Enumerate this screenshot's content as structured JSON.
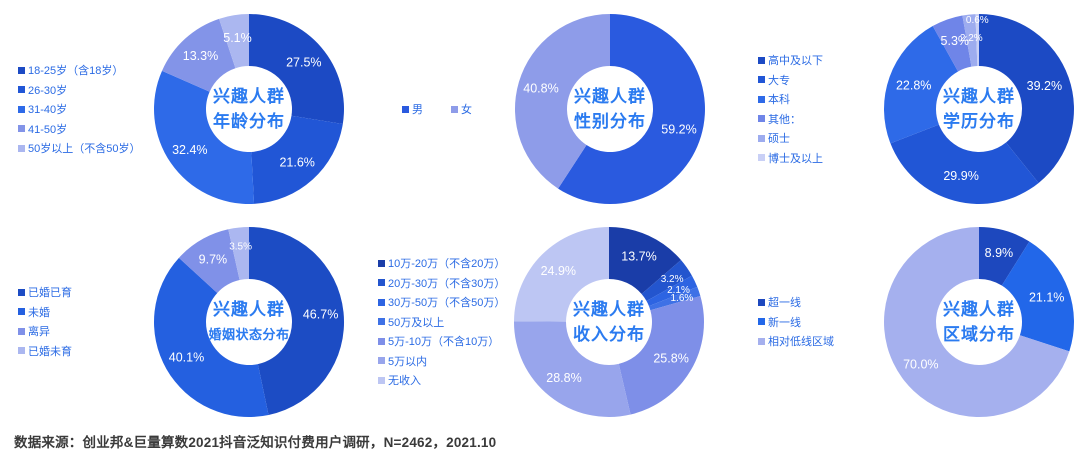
{
  "page": {
    "footer": "数据来源：创业邦&巨量算数2021抖音泛知识付费用户调研，N=2462，2021.10"
  },
  "styles": {
    "legend_text_color": "#2B6BE4",
    "center_title_color": "#2B7BF0",
    "slice_label_color": "#FFFFFF",
    "background": "#FFFFFF"
  },
  "chart_data": [
    {
      "id": "age",
      "type": "pie",
      "donut": true,
      "title": "兴趣人群年龄分布",
      "title_lines": [
        "兴趣人群",
        "年龄分布"
      ],
      "legend_position": "left",
      "legend_layout": "column",
      "start_angle_deg": 0,
      "direction": "clockwise",
      "categories": [
        "18-25岁（含18岁）",
        "26-30岁",
        "31-40岁",
        "41-50岁",
        "50岁以上（不含50岁）"
      ],
      "values": [
        27.5,
        21.6,
        32.4,
        13.3,
        5.1
      ],
      "colors": [
        "#1C4AC4",
        "#2156D6",
        "#2E6AE8",
        "#8394E8",
        "#ABB7F0"
      ]
    },
    {
      "id": "gender",
      "type": "pie",
      "donut": true,
      "title": "兴趣人群性别分布",
      "title_lines": [
        "兴趣人群",
        "性别分布"
      ],
      "legend_position": "left",
      "legend_layout": "row",
      "start_angle_deg": 0,
      "direction": "clockwise",
      "categories": [
        "男",
        "女"
      ],
      "values": [
        59.2,
        40.8
      ],
      "colors": [
        "#2A5ADF",
        "#8E9CE9"
      ]
    },
    {
      "id": "education",
      "type": "pie",
      "donut": true,
      "title": "兴趣人群学历分布",
      "title_lines": [
        "兴趣人群",
        "学历分布"
      ],
      "legend_position": "left",
      "legend_layout": "column",
      "start_angle_deg": 0,
      "direction": "clockwise",
      "categories": [
        "高中及以下",
        "大专",
        "本科",
        "其他：",
        "硕士",
        "博士及以上"
      ],
      "values": [
        39.2,
        29.9,
        22.8,
        5.3,
        2.2,
        0.6
      ],
      "colors": [
        "#1C4AC4",
        "#2156D6",
        "#2E6AE8",
        "#6F85E8",
        "#9DACEF",
        "#C9D0F6"
      ],
      "label_r": [
        0.73,
        0.73,
        0.73,
        0.76,
        0.76,
        0.95
      ]
    },
    {
      "id": "marital",
      "type": "pie",
      "donut": true,
      "title": "兴趣人群婚姻状态分布",
      "title_lines": [
        "兴趣人群",
        "婚姻状态分布"
      ],
      "legend_position": "left",
      "legend_layout": "column",
      "start_angle_deg": 0,
      "direction": "clockwise",
      "categories": [
        "已婚已育",
        "未婚",
        "离异",
        "已婚未育"
      ],
      "values": [
        46.7,
        40.1,
        9.7,
        3.5
      ],
      "colors": [
        "#1C4CC4",
        "#2460E0",
        "#8091E8",
        "#ABB7F0"
      ]
    },
    {
      "id": "income",
      "type": "pie",
      "donut": true,
      "title": "兴趣人群收入分布",
      "title_lines": [
        "兴趣人群",
        "收入分布"
      ],
      "legend_position": "left",
      "legend_layout": "column",
      "start_angle_deg": 0,
      "direction": "clockwise",
      "categories": [
        "10万-20万（不含20万）",
        "20万-30万（不含30万）",
        "30万-50万（不含50万）",
        "50万及以上",
        "5万-10万（不含10万）",
        "5万以内",
        "无收入"
      ],
      "values": [
        13.7,
        3.2,
        2.1,
        1.6,
        25.8,
        28.8,
        24.9
      ],
      "colors": [
        "#1A3DA8",
        "#2355CE",
        "#2D64E2",
        "#3E71E6",
        "#7E8FE8",
        "#98A5EC",
        "#BDC6F3"
      ]
    },
    {
      "id": "region",
      "type": "pie",
      "donut": true,
      "title": "兴趣人群区域分布",
      "title_lines": [
        "兴趣人群",
        "区域分布"
      ],
      "legend_position": "left",
      "legend_layout": "column",
      "start_angle_deg": 0,
      "direction": "clockwise",
      "categories": [
        "超一线",
        "新一线",
        "相对低线区域"
      ],
      "values": [
        8.9,
        21.1,
        70.0
      ],
      "colors": [
        "#1D48BE",
        "#2267E9",
        "#A5B0EE"
      ]
    }
  ]
}
